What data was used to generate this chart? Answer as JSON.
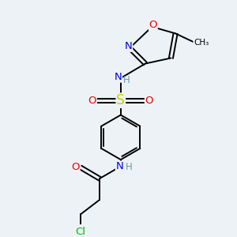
{
  "background_color": "#edf2f7",
  "atom_colors": {
    "C": "#000000",
    "N": "#0000ee",
    "O": "#ee0000",
    "S": "#cccc00",
    "H": "#6699aa",
    "Cl": "#00bb00"
  },
  "bond_color": "#000000",
  "bond_width": 1.4,
  "font_size_atom": 8.5
}
